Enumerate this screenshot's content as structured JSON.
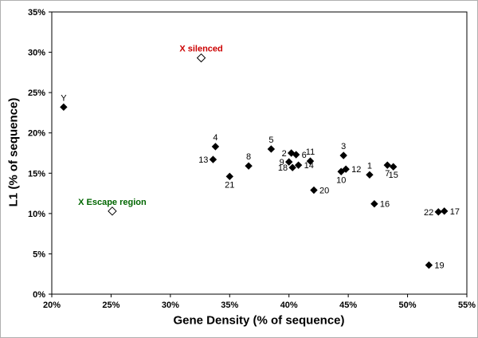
{
  "chart_data": {
    "type": "scatter",
    "title": "",
    "xlabel": "Gene Density (% of sequence)",
    "ylabel": "L1 (% of sequence)",
    "xlim": [
      20,
      55
    ],
    "ylim": [
      0,
      35
    ],
    "grid": false,
    "legend": "none",
    "xticks": [
      {
        "v": 20,
        "label": "20%"
      },
      {
        "v": 25,
        "label": "25%"
      },
      {
        "v": 30,
        "label": "30%"
      },
      {
        "v": 35,
        "label": "35%"
      },
      {
        "v": 40,
        "label": "40%"
      },
      {
        "v": 45,
        "label": "45%"
      },
      {
        "v": 50,
        "label": "50%"
      },
      {
        "v": 55,
        "label": "55%"
      }
    ],
    "yticks": [
      {
        "v": 0,
        "label": "0%"
      },
      {
        "v": 5,
        "label": "5%"
      },
      {
        "v": 10,
        "label": "10%"
      },
      {
        "v": 15,
        "label": "15%"
      },
      {
        "v": 20,
        "label": "20%"
      },
      {
        "v": 25,
        "label": "25%"
      },
      {
        "v": 30,
        "label": "30%"
      },
      {
        "v": 35,
        "label": "35%"
      }
    ],
    "marker_color": "#000000",
    "annotation_colors": {
      "x_silenced": "#cc0000",
      "x_escape": "#006600"
    },
    "points": [
      {
        "label": "Y",
        "x": 21.0,
        "y": 23.2,
        "marker": "filled",
        "pos": "above"
      },
      {
        "label": "X silenced",
        "x": 32.6,
        "y": 29.3,
        "marker": "open",
        "pos": "above",
        "color": "#cc0000",
        "bold": true
      },
      {
        "label": "X Escape region",
        "x": 25.1,
        "y": 10.3,
        "marker": "open",
        "pos": "above",
        "color": "#006600",
        "bold": true
      },
      {
        "label": "4",
        "x": 33.8,
        "y": 18.3,
        "marker": "filled",
        "pos": "above"
      },
      {
        "label": "13",
        "x": 33.6,
        "y": 16.7,
        "marker": "filled",
        "pos": "left"
      },
      {
        "label": "21",
        "x": 35.0,
        "y": 14.6,
        "marker": "filled",
        "pos": "below"
      },
      {
        "label": "8",
        "x": 36.6,
        "y": 15.9,
        "marker": "filled",
        "pos": "above"
      },
      {
        "label": "5",
        "x": 38.5,
        "y": 18.0,
        "marker": "filled",
        "pos": "above"
      },
      {
        "label": "2",
        "x": 40.2,
        "y": 17.5,
        "marker": "filled",
        "pos": "left"
      },
      {
        "label": "6",
        "x": 40.6,
        "y": 17.3,
        "marker": "filled",
        "pos": "right"
      },
      {
        "label": "9",
        "x": 40.0,
        "y": 16.4,
        "marker": "filled",
        "pos": "left"
      },
      {
        "label": "18",
        "x": 40.3,
        "y": 15.7,
        "marker": "filled",
        "pos": "left"
      },
      {
        "label": "14",
        "x": 40.8,
        "y": 16.0,
        "marker": "filled",
        "pos": "right"
      },
      {
        "label": "11",
        "x": 41.8,
        "y": 16.5,
        "marker": "filled",
        "pos": "above"
      },
      {
        "label": "20",
        "x": 42.1,
        "y": 12.9,
        "marker": "filled",
        "pos": "right"
      },
      {
        "label": "3",
        "x": 44.6,
        "y": 17.2,
        "marker": "filled",
        "pos": "above"
      },
      {
        "label": "10",
        "x": 44.4,
        "y": 15.2,
        "marker": "filled",
        "pos": "below"
      },
      {
        "label": "12",
        "x": 44.8,
        "y": 15.5,
        "marker": "filled",
        "pos": "right"
      },
      {
        "label": "1",
        "x": 46.8,
        "y": 14.8,
        "marker": "filled",
        "pos": "above"
      },
      {
        "label": "16",
        "x": 47.2,
        "y": 11.2,
        "marker": "filled",
        "pos": "right"
      },
      {
        "label": "7",
        "x": 48.3,
        "y": 16.0,
        "marker": "filled",
        "pos": "below"
      },
      {
        "label": "15",
        "x": 48.8,
        "y": 15.8,
        "marker": "filled",
        "pos": "below"
      },
      {
        "label": "22",
        "x": 52.6,
        "y": 10.2,
        "marker": "filled",
        "pos": "left"
      },
      {
        "label": "17",
        "x": 53.1,
        "y": 10.3,
        "marker": "filled",
        "pos": "right"
      },
      {
        "label": "19",
        "x": 51.8,
        "y": 3.6,
        "marker": "filled",
        "pos": "right"
      }
    ]
  }
}
